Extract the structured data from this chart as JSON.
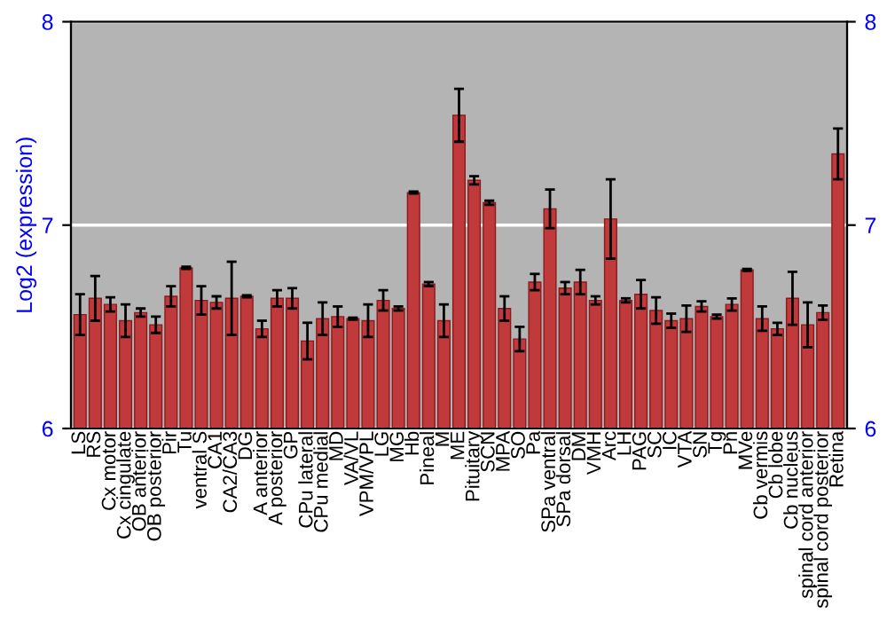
{
  "chart_data": {
    "type": "bar",
    "ylabel": "Log2 (expression)",
    "categories": [
      "LS",
      "RS",
      "Cx motor",
      "Cx cingulate",
      "OB anterior",
      "OB posterior",
      "Pir",
      "Tu",
      "ventral S",
      "CA1",
      "CA2/CA3",
      "DG",
      "A anterior",
      "A posterior",
      "GP",
      "CPu lateral",
      "CPu medial",
      "MD",
      "VA/VL",
      "VPM/VPL",
      "LG",
      "MG",
      "Hb",
      "Pineal",
      "M",
      "ME",
      "Pituitary",
      "SCN",
      "MPA",
      "SO",
      "Pa",
      "SPa ventral",
      "SPa dorsal",
      "DM",
      "VMH",
      "Arc",
      "LH",
      "PAG",
      "SC",
      "IC",
      "VTA",
      "SN",
      "Tg",
      "Pn",
      "MVe",
      "Cb vermis",
      "Cb lobe",
      "Cb nucleus",
      "spinal cord anterior",
      "spinal cord posterior",
      "Retina"
    ],
    "values": [
      6.56,
      6.64,
      6.61,
      6.53,
      6.57,
      6.51,
      6.65,
      6.79,
      6.63,
      6.62,
      6.64,
      6.65,
      6.49,
      6.64,
      6.64,
      6.43,
      6.54,
      6.55,
      6.54,
      6.53,
      6.63,
      6.59,
      7.16,
      6.71,
      6.53,
      7.54,
      7.22,
      7.11,
      6.59,
      6.44,
      6.72,
      7.08,
      6.69,
      6.72,
      6.63,
      7.03,
      6.63,
      6.66,
      6.58,
      6.53,
      6.54,
      6.6,
      6.55,
      6.61,
      6.78,
      6.54,
      6.49,
      6.64,
      6.51,
      6.57,
      7.35
    ],
    "errors": [
      0.1,
      0.11,
      0.035,
      0.08,
      0.02,
      0.04,
      0.05,
      0.005,
      0.07,
      0.03,
      0.18,
      0.005,
      0.04,
      0.04,
      0.05,
      0.09,
      0.08,
      0.05,
      0.005,
      0.08,
      0.05,
      0.01,
      0.005,
      0.01,
      0.08,
      0.13,
      0.02,
      0.01,
      0.06,
      0.06,
      0.04,
      0.095,
      0.03,
      0.06,
      0.02,
      0.195,
      0.01,
      0.07,
      0.065,
      0.035,
      0.065,
      0.025,
      0.01,
      0.03,
      0.005,
      0.06,
      0.03,
      0.13,
      0.11,
      0.035,
      0.125
    ],
    "color": "#c0393b",
    "ylim": [
      6,
      8
    ],
    "yticks": [
      6,
      7,
      8
    ],
    "y2lim": [
      6,
      8
    ],
    "y2ticks": [
      6,
      7,
      8
    ],
    "grid": "y"
  }
}
